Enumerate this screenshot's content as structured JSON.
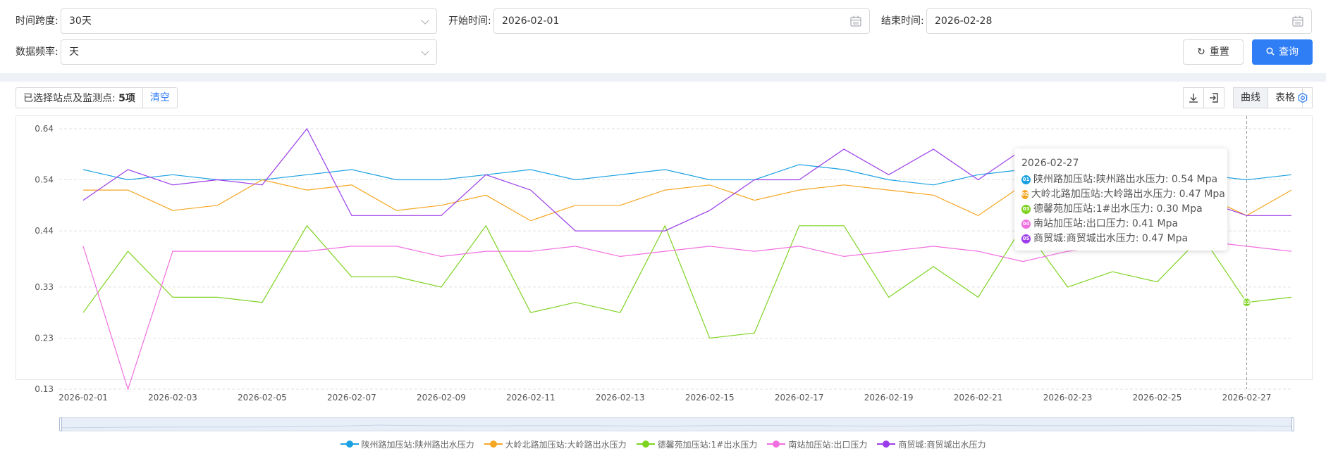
{
  "filters": {
    "span_label": "时间跨度:",
    "span_value": "30天",
    "start_label": "开始时间:",
    "start_value": "2026-02-01",
    "end_label": "结束时间:",
    "end_value": "2026-02-28",
    "freq_label": "数据频率:",
    "freq_value": "天",
    "reset_label": "重置",
    "query_label": "查询"
  },
  "toolbar": {
    "selected_label": "已选择站点及监测点:",
    "selected_count": "5项",
    "clear_label": "清空",
    "view_curve": "曲线",
    "view_table": "表格"
  },
  "tooltip": {
    "date": "2026-02-27",
    "rows": [
      {
        "badge": "01",
        "text": "陕州路加压站:陕州路出水压力:  0.54 Mpa"
      },
      {
        "badge": "02",
        "text": "大岭北路加压站:大岭路出水压力:  0.47 Mpa"
      },
      {
        "badge": "03",
        "text": "德馨苑加压站:1#出水压力:  0.30 Mpa"
      },
      {
        "badge": "04",
        "text": "南站加压站:出口压力:  0.41 Mpa"
      },
      {
        "badge": "05",
        "text": "商贸城:商贸城出水压力:  0.47 Mpa"
      }
    ]
  },
  "chart_data": {
    "type": "line",
    "x": [
      "2026-02-01",
      "2026-02-02",
      "2026-02-03",
      "2026-02-04",
      "2026-02-05",
      "2026-02-06",
      "2026-02-07",
      "2026-02-08",
      "2026-02-09",
      "2026-02-10",
      "2026-02-11",
      "2026-02-12",
      "2026-02-13",
      "2026-02-14",
      "2026-02-15",
      "2026-02-16",
      "2026-02-17",
      "2026-02-18",
      "2026-02-19",
      "2026-02-20",
      "2026-02-21",
      "2026-02-22",
      "2026-02-23",
      "2026-02-24",
      "2026-02-25",
      "2026-02-26",
      "2026-02-27",
      "2026-02-28"
    ],
    "x_tick_labels": [
      "2026-02-01",
      "2026-02-03",
      "2026-02-05",
      "2026-02-07",
      "2026-02-09",
      "2026-02-11",
      "2026-02-13",
      "2026-02-15",
      "2026-02-17",
      "2026-02-19",
      "2026-02-21",
      "2026-02-23",
      "2026-02-25",
      "2026-02-27"
    ],
    "y_ticks": [
      "0.64",
      "0.54",
      "0.44",
      "0.33",
      "0.23",
      "0.13"
    ],
    "ylim": [
      0.13,
      0.64
    ],
    "grid": true,
    "legend_position": "bottom",
    "highlight_x": "2026-02-27",
    "series": [
      {
        "name": "陕州路加压站:陕州路出水压力",
        "badge": "01",
        "color": "#1ba1e2",
        "values": [
          0.56,
          0.54,
          0.55,
          0.54,
          0.54,
          0.55,
          0.56,
          0.54,
          0.54,
          0.55,
          0.56,
          0.54,
          0.55,
          0.56,
          0.54,
          0.54,
          0.57,
          0.56,
          0.54,
          0.53,
          0.55,
          0.56,
          0.55,
          0.55,
          0.55,
          0.55,
          0.54,
          0.55
        ]
      },
      {
        "name": "大岭北路加压站:大岭路出水压力",
        "badge": "02",
        "color": "#f5a623",
        "values": [
          0.52,
          0.52,
          0.48,
          0.49,
          0.54,
          0.52,
          0.53,
          0.48,
          0.49,
          0.51,
          0.46,
          0.49,
          0.49,
          0.52,
          0.53,
          0.5,
          0.52,
          0.53,
          0.52,
          0.51,
          0.47,
          0.53,
          0.51,
          0.51,
          0.5,
          0.51,
          0.47,
          0.52
        ]
      },
      {
        "name": "德馨苑加压站:1#出水压力",
        "badge": "03",
        "color": "#7ed321",
        "values": [
          0.28,
          0.4,
          0.31,
          0.31,
          0.3,
          0.45,
          0.35,
          0.35,
          0.33,
          0.45,
          0.28,
          0.3,
          0.28,
          0.45,
          0.23,
          0.24,
          0.45,
          0.45,
          0.31,
          0.37,
          0.31,
          0.45,
          0.33,
          0.36,
          0.34,
          0.43,
          0.3,
          0.31
        ]
      },
      {
        "name": "南站加压站:出口压力",
        "badge": "04",
        "color": "#f16ee0",
        "values": [
          0.41,
          0.13,
          0.4,
          0.4,
          0.4,
          0.4,
          0.41,
          0.41,
          0.39,
          0.4,
          0.4,
          0.41,
          0.39,
          0.4,
          0.41,
          0.4,
          0.41,
          0.39,
          0.4,
          0.41,
          0.4,
          0.38,
          0.4,
          0.41,
          0.41,
          0.42,
          0.41,
          0.4
        ]
      },
      {
        "name": "商贸城:商贸城出水压力",
        "badge": "05",
        "color": "#9b3de8",
        "values": [
          0.5,
          0.56,
          0.53,
          0.54,
          0.53,
          0.64,
          0.47,
          0.47,
          0.47,
          0.55,
          0.52,
          0.44,
          0.44,
          0.44,
          0.48,
          0.54,
          0.54,
          0.6,
          0.55,
          0.6,
          0.54,
          0.6,
          0.58,
          0.58,
          0.55,
          0.5,
          0.47,
          0.47
        ]
      }
    ]
  }
}
